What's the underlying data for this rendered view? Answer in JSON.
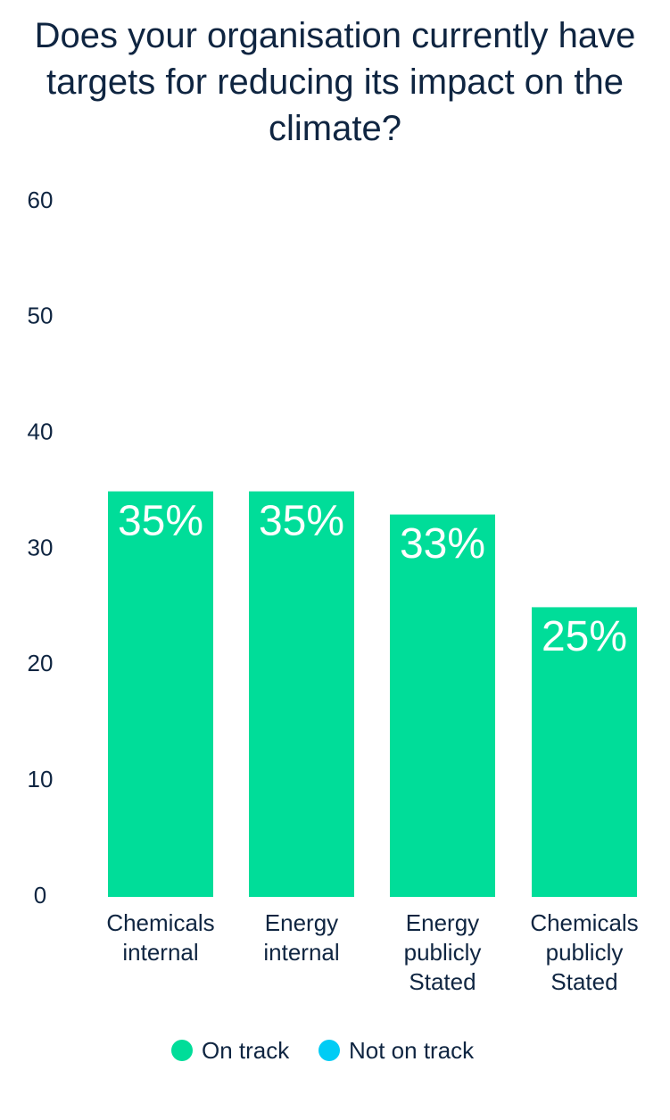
{
  "chart_data": {
    "type": "bar",
    "title": "Does your organisation currently have targets for reducing its impact on the climate?",
    "categories": [
      "Chemicals internal",
      "Energy internal",
      "Energy publicly Stated",
      "Chemicals publicly Stated"
    ],
    "series": [
      {
        "name": "On track",
        "color": "#00dd99",
        "values": [
          35,
          35,
          33,
          25
        ],
        "value_labels": [
          "35%",
          "35%",
          "33%",
          "25%"
        ]
      },
      {
        "name": "Not on track",
        "color": "#00ccf5",
        "values": [
          null,
          null,
          null,
          null
        ]
      }
    ],
    "ylim": [
      0,
      60
    ],
    "yticks": [
      0,
      10,
      20,
      30,
      40,
      50,
      60
    ],
    "grid": false
  }
}
